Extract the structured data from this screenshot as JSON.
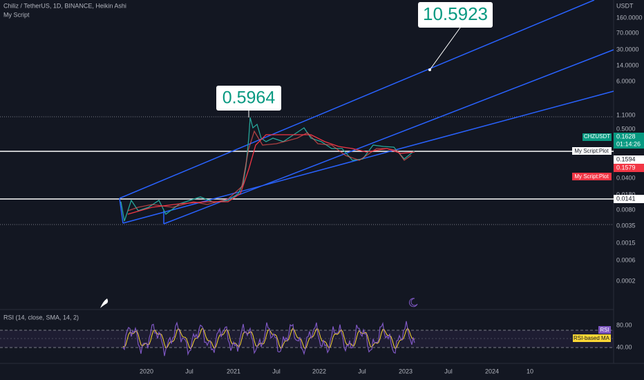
{
  "header": {
    "symbol": "Chiliz / TetherUS, 1D, BINANCE, Heikin Ashi",
    "indicator": "My Script"
  },
  "price_axis": {
    "unit": "USDT",
    "labels": [
      "160.0000",
      "70.0000",
      "30.0000",
      "14.0000",
      "6.0000",
      "1.1000",
      "0.5000",
      "0.0400",
      "0.0180",
      "0.0080",
      "0.0035",
      "0.0015",
      "0.0006",
      "0.0002"
    ]
  },
  "badges": {
    "symbol": "CHZUSDT",
    "last_price": "0.1628",
    "countdown": "01:14:26",
    "plot_label": "My Script:Plot",
    "plot_value": "0.1594",
    "plot2_value": "0.1579",
    "plot2_label": "My Script:Plot",
    "level_value": "0.0141"
  },
  "annotations": [
    "10.5923",
    "0.5964"
  ],
  "rsi": {
    "title": "RSI (14, close, SMA, 14, 2)",
    "upper": "80.00",
    "lower": "40.00",
    "rsi_badge": "RSI",
    "ma_badge": "RSI-based MA"
  },
  "time_axis": [
    "2020",
    "Jul",
    "2021",
    "Jul",
    "2022",
    "Jul",
    "2023",
    "Jul",
    "2024",
    "10"
  ]
}
